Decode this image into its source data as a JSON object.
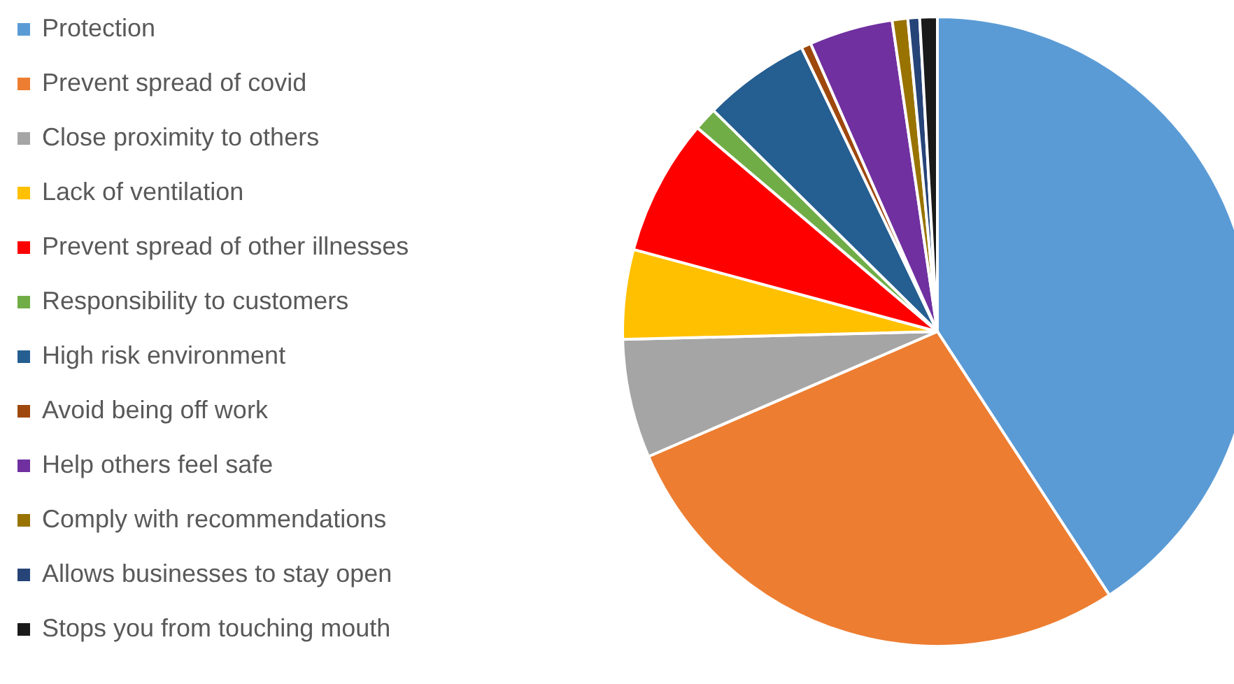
{
  "chart_data": {
    "type": "pie",
    "categories": [
      "Protection",
      "Prevent spread of covid",
      "Close proximity to others",
      "Lack of ventilation",
      "Prevent spread of other illnesses",
      "Responsibility to customers",
      "High risk environment",
      "Avoid being off work",
      "Help others feel safe",
      "Comply with recommendations",
      "Allows businesses to stay open",
      "Stops you from touching mouth"
    ],
    "values": [
      40.8,
      27.7,
      6.1,
      4.6,
      7,
      1.2,
      5.5,
      0.5,
      4.3,
      0.8,
      0.6,
      0.9
    ],
    "colors": [
      "#5b9bd5",
      "#ed7d31",
      "#a5a5a5",
      "#ffc000",
      "#ff0000",
      "#70ad47",
      "#255e91",
      "#9e480e",
      "#7030a0",
      "#997300",
      "#264478",
      "#1a1a1a"
    ],
    "legend": "left"
  }
}
